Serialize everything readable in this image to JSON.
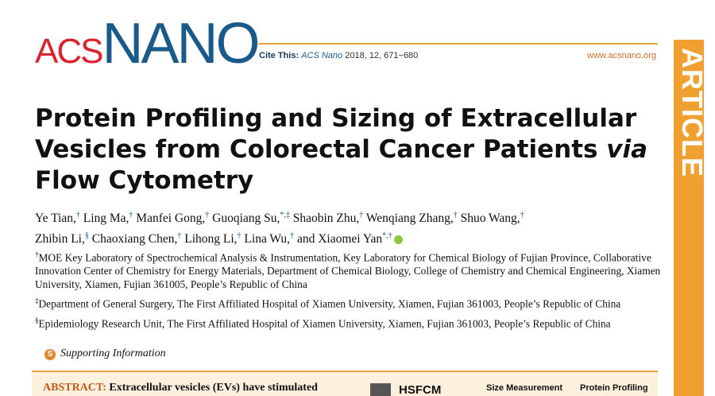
{
  "header": {
    "logo_acs": "ACS",
    "logo_nano": "NANO",
    "cite_label": "Cite This:",
    "cite_journal": "ACS Nano",
    "cite_details": "2018, 12, 671−680",
    "url": "www.acsnano.org",
    "section": "ARTICLE"
  },
  "title": [
    "Protein Profiling and Sizing of Extracellular Vesicles from Colorectal Cancer Patients ",
    "via",
    "Flow Cytometry"
  ],
  "authors": [
    {
      "name": "Ye Tian,",
      "sup": "†"
    },
    {
      "name": "Ling Ma,",
      "sup": "†"
    },
    {
      "name": "Manfei Gong,",
      "sup": "†"
    },
    {
      "name": "Guoqiang Su,",
      "sup": "*,‡"
    },
    {
      "name": "Shaobin Zhu,",
      "sup": "†"
    },
    {
      "name": "Wenqiang Zhang,",
      "sup": "†"
    },
    {
      "name": "Shuo Wang,",
      "sup": "†"
    },
    {
      "name": "Zhibin Li,",
      "sup": "§"
    },
    {
      "name": "Chaoxiang Chen,",
      "sup": "†"
    },
    {
      "name": "Lihong Li,",
      "sup": "†"
    },
    {
      "name": "Lina Wu,",
      "sup": "†"
    },
    {
      "name": "and Xiaomei Yan",
      "sup": "*,†"
    }
  ],
  "affiliations": [
    {
      "sup": "†",
      "text": "MOE Key Laboratory of Spectrochemical Analysis & Instrumentation, Key Laboratory for Chemical Biology of Fujian Province, Collaborative Innovation Center of Chemistry for Energy Materials, Department of Chemical Biology, College of Chemistry and Chemical Engineering, Xiamen University, Xiamen, Fujian 361005, People’s Republic of China"
    },
    {
      "sup": "‡",
      "text": "Department of General Surgery, The First Affiliated Hospital of Xiamen University, Xiamen, Fujian 361003, People’s Republic of China"
    },
    {
      "sup": "§",
      "text": "Epidemiology Research Unit, The First Affiliated Hospital of Xiamen University, Xiamen, Fujian 361003, People’s Republic of China"
    }
  ],
  "supporting_information": "Supporting Information",
  "abstract": {
    "label": "ABSTRACT:",
    "text": "Extracellular vesicles (EVs) have stimulated"
  },
  "figure": [
    "HSFCM",
    "Size Measurement",
    "Protein Profiling"
  ]
}
